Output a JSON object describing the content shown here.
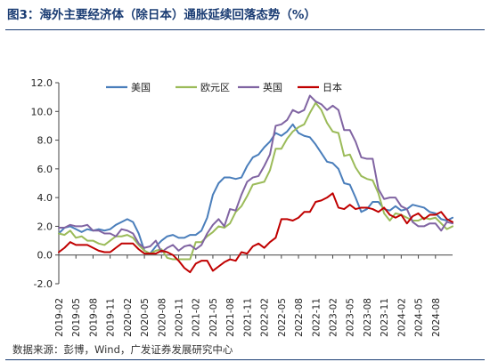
{
  "header": {
    "title": "图3：海外主要经济体（除日本）通胀延续回落态势（%）"
  },
  "footer": {
    "source": "数据来源：彭博，Wind，广发证券发展研究中心"
  },
  "chart_data": {
    "type": "line",
    "title": "图3：海外主要经济体（除日本）通胀延续回落态势（%）",
    "xlabel": "",
    "ylabel": "",
    "ylim": [
      -2.0,
      12.0
    ],
    "y_ticks": [
      -2.0,
      0.0,
      2.0,
      4.0,
      6.0,
      8.0,
      10.0,
      12.0
    ],
    "y_tick_labels": [
      "-2.0",
      "0.0",
      "2.0",
      "4.0",
      "6.0",
      "8.0",
      "10.0",
      "12.0"
    ],
    "x_start": "2019-02",
    "x_end": "2024-10",
    "x_tick_labels": [
      "2019-02",
      "2019-05",
      "2019-08",
      "2019-11",
      "2020-02",
      "2020-05",
      "2020-08",
      "2020-11",
      "2021-02",
      "2021-05",
      "2021-08",
      "2021-11",
      "2022-02",
      "2022-05",
      "2022-08",
      "2022-11",
      "2023-02",
      "2023-05",
      "2023-08",
      "2023-11",
      "2024-02",
      "2024-05",
      "2024-08"
    ],
    "legend_position": "top",
    "grid": false,
    "series": [
      {
        "name": "美国",
        "color": "#4a7ebb",
        "values": [
          1.5,
          1.9,
          2.0,
          1.8,
          1.6,
          1.8,
          1.7,
          1.8,
          1.7,
          1.8,
          2.1,
          2.3,
          2.5,
          2.3,
          1.5,
          0.3,
          0.1,
          0.6,
          1.0,
          1.3,
          1.4,
          1.2,
          1.2,
          1.4,
          1.4,
          1.7,
          2.6,
          4.2,
          5.0,
          5.4,
          5.4,
          5.3,
          5.4,
          6.2,
          6.8,
          7.0,
          7.5,
          7.9,
          8.5,
          8.3,
          8.6,
          9.1,
          8.5,
          8.3,
          8.2,
          7.7,
          7.1,
          6.5,
          6.4,
          6.0,
          5.0,
          4.9,
          4.0,
          3.0,
          3.2,
          3.7,
          3.7,
          3.2,
          3.1,
          3.4,
          3.1,
          3.2,
          3.5,
          3.4,
          3.3,
          3.0,
          2.9,
          2.5,
          2.4,
          2.6
        ]
      },
      {
        "name": "欧元区",
        "color": "#9bbb59",
        "values": [
          1.5,
          1.4,
          1.7,
          1.2,
          1.3,
          1.0,
          1.0,
          0.8,
          0.7,
          1.0,
          1.3,
          1.3,
          1.4,
          1.2,
          0.7,
          0.3,
          0.1,
          0.3,
          0.4,
          -0.2,
          -0.3,
          -0.3,
          -0.3,
          -0.3,
          0.9,
          0.9,
          1.3,
          1.6,
          2.0,
          1.9,
          2.2,
          3.0,
          3.4,
          4.1,
          4.9,
          5.0,
          5.1,
          5.9,
          7.4,
          7.4,
          8.1,
          8.6,
          8.9,
          9.1,
          9.9,
          10.6,
          10.1,
          9.2,
          8.6,
          8.5,
          6.9,
          7.0,
          6.1,
          5.5,
          5.3,
          5.2,
          4.3,
          2.9,
          2.4,
          2.9,
          2.8,
          2.6,
          2.4,
          2.4,
          2.6,
          2.5,
          2.6,
          2.2,
          1.8,
          2.0
        ]
      },
      {
        "name": "英国",
        "color": "#8064a2",
        "values": [
          1.9,
          1.9,
          2.1,
          2.0,
          2.0,
          2.1,
          1.7,
          1.7,
          1.5,
          1.5,
          1.3,
          1.8,
          1.7,
          1.5,
          0.8,
          0.5,
          0.6,
          1.0,
          0.2,
          0.5,
          0.7,
          0.3,
          0.6,
          0.7,
          0.4,
          0.7,
          1.5,
          2.1,
          2.5,
          2.0,
          3.2,
          3.1,
          4.2,
          5.1,
          5.4,
          5.5,
          6.2,
          7.0,
          9.0,
          9.1,
          9.4,
          10.1,
          9.9,
          10.1,
          11.1,
          10.7,
          10.5,
          10.1,
          10.4,
          10.1,
          8.7,
          8.7,
          7.9,
          6.8,
          6.7,
          6.7,
          4.6,
          3.9,
          4.0,
          4.0,
          3.4,
          3.2,
          2.3,
          2.0,
          2.0,
          2.2,
          2.2,
          1.7,
          2.3,
          2.2
        ]
      },
      {
        "name": "日本",
        "color": "#c00000",
        "values": [
          0.2,
          0.5,
          0.9,
          0.7,
          0.7,
          0.7,
          0.5,
          0.3,
          0.2,
          0.2,
          0.5,
          0.8,
          0.8,
          0.8,
          0.4,
          0.1,
          0.1,
          0.1,
          0.3,
          0.2,
          0.0,
          -0.4,
          -0.9,
          -1.2,
          -0.6,
          -0.4,
          -0.4,
          -1.1,
          -0.8,
          -0.5,
          -0.3,
          -0.4,
          0.2,
          0.1,
          0.6,
          0.8,
          0.5,
          0.9,
          1.2,
          2.5,
          2.5,
          2.4,
          2.6,
          3.0,
          3.0,
          3.7,
          3.8,
          4.0,
          4.3,
          3.3,
          3.2,
          3.5,
          3.2,
          3.3,
          3.3,
          3.2,
          3.0,
          3.3,
          2.8,
          2.6,
          2.8,
          2.2,
          2.7,
          2.9,
          2.5,
          2.8,
          2.8,
          3.0,
          2.5,
          2.3
        ]
      }
    ]
  }
}
